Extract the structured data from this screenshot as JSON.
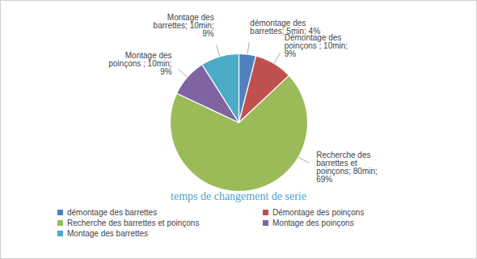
{
  "chart_data": {
    "type": "pie",
    "title": "temps de changement de serie",
    "categories": [
      "démontage des barrettes",
      "Démontage des poinçons",
      "Recherche des barrettes et poinçons",
      "Montage des poinçons",
      "Montage des barrettes"
    ],
    "values": [
      4,
      9,
      69,
      9,
      9
    ],
    "value_labels": [
      "démontage des barrettes; 5min; 4%",
      "Démontage des poinçons ; 10min; 9%",
      "Recherche des barrettes et poinçons; 80min; 69%",
      "Montage des poinçons ; 10min; 9%",
      "Montage des barrettes; 10min; 9%"
    ],
    "colors": [
      "#4f81bd",
      "#c0504d",
      "#9bbb59",
      "#8064a2",
      "#4bacc6"
    ],
    "data_labels": true,
    "legend": "bottom"
  }
}
